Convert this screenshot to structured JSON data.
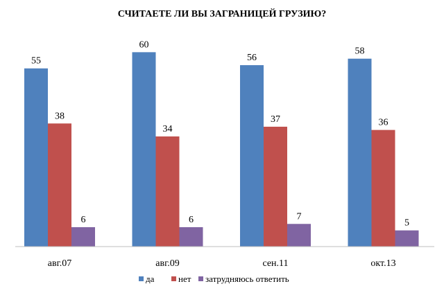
{
  "chart_data": {
    "type": "bar",
    "title": "СЧИТАЕТЕ ЛИ ВЫ ЗАГРАНИЦЕЙ ГРУЗИЮ?",
    "categories": [
      "авг.07",
      "авг.09",
      "сен.11",
      "окт.13"
    ],
    "series": [
      {
        "name": "да",
        "values": [
          55,
          60,
          56,
          58
        ],
        "color": "#4f81bd"
      },
      {
        "name": "нет",
        "values": [
          38,
          34,
          37,
          36
        ],
        "color": "#c0504d"
      },
      {
        "name": "затрудняюсь ответить",
        "values": [
          6,
          6,
          7,
          5
        ],
        "color": "#8064a2"
      }
    ],
    "ylim": [
      0,
      62
    ],
    "grid": false,
    "legend_position": "bottom",
    "data_labels": true
  }
}
